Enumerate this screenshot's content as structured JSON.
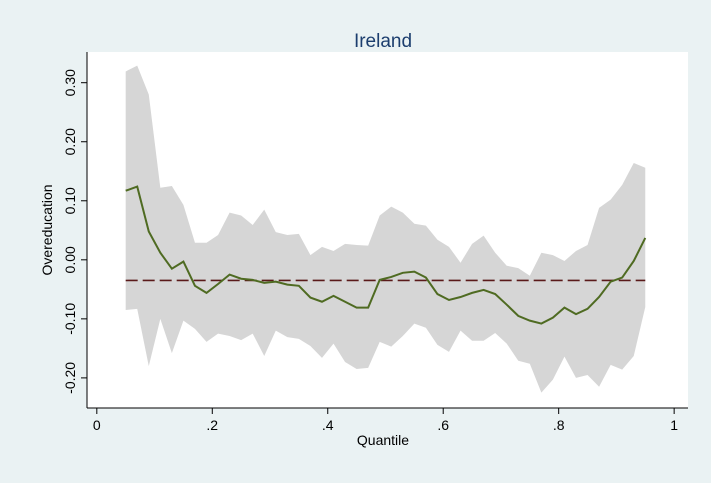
{
  "chart_data": {
    "type": "line",
    "title": "Ireland",
    "x_label": "Quantile",
    "y_label": "Overeducation",
    "x": [
      0.05,
      0.07,
      0.09,
      0.11,
      0.13,
      0.15,
      0.17,
      0.19,
      0.21,
      0.23,
      0.25,
      0.27,
      0.29,
      0.31,
      0.33,
      0.35,
      0.37,
      0.39,
      0.41,
      0.43,
      0.45,
      0.47,
      0.49,
      0.51,
      0.53,
      0.55,
      0.57,
      0.59,
      0.61,
      0.63,
      0.65,
      0.67,
      0.69,
      0.71,
      0.73,
      0.75,
      0.77,
      0.79,
      0.81,
      0.83,
      0.85,
      0.87,
      0.89,
      0.91,
      0.93,
      0.95
    ],
    "values": [
      0.117,
      0.124,
      0.048,
      0.012,
      -0.015,
      -0.003,
      -0.044,
      -0.056,
      -0.041,
      -0.025,
      -0.032,
      -0.034,
      -0.039,
      -0.037,
      -0.042,
      -0.044,
      -0.064,
      -0.071,
      -0.061,
      -0.071,
      -0.081,
      -0.081,
      -0.034,
      -0.029,
      -0.022,
      -0.02,
      -0.03,
      -0.058,
      -0.068,
      -0.063,
      -0.056,
      -0.051,
      -0.058,
      -0.076,
      -0.095,
      -0.103,
      -0.108,
      -0.098,
      -0.081,
      -0.092,
      -0.083,
      -0.063,
      -0.037,
      -0.03,
      -0.002,
      0.037
    ],
    "ci_upper": [
      0.319,
      0.329,
      0.28,
      0.122,
      0.125,
      0.093,
      0.029,
      0.029,
      0.042,
      0.08,
      0.075,
      0.059,
      0.085,
      0.047,
      0.042,
      0.044,
      0.008,
      0.022,
      0.015,
      0.027,
      0.025,
      0.024,
      0.075,
      0.09,
      0.08,
      0.061,
      0.058,
      0.034,
      0.022,
      -0.005,
      0.027,
      0.041,
      0.012,
      -0.01,
      -0.014,
      -0.027,
      0.012,
      0.008,
      -0.002,
      0.015,
      0.025,
      0.088,
      0.102,
      0.127,
      0.164,
      0.156
    ],
    "ci_lower": [
      -0.085,
      -0.083,
      -0.18,
      -0.1,
      -0.158,
      -0.103,
      -0.117,
      -0.139,
      -0.125,
      -0.129,
      -0.136,
      -0.125,
      -0.163,
      -0.12,
      -0.131,
      -0.134,
      -0.146,
      -0.166,
      -0.142,
      -0.173,
      -0.185,
      -0.183,
      -0.139,
      -0.147,
      -0.129,
      -0.108,
      -0.115,
      -0.144,
      -0.156,
      -0.12,
      -0.137,
      -0.137,
      -0.124,
      -0.142,
      -0.171,
      -0.176,
      -0.225,
      -0.203,
      -0.164,
      -0.2,
      -0.195,
      -0.215,
      -0.178,
      -0.186,
      -0.163,
      -0.08
    ],
    "reference_line": -0.035,
    "color": "#4f6b22",
    "band_color": "#d6d6d6",
    "reference_color": "#5a1a1a",
    "xlim": [
      -0.017,
      1.024
    ],
    "ylim": [
      -0.251,
      0.352
    ],
    "xticks": [
      0,
      {
        "value": 0.2,
        "label": ".2"
      },
      {
        "value": 0.4,
        "label": ".4"
      },
      {
        "value": 0.6,
        "label": ".6"
      },
      {
        "value": 0.8,
        "label": ".8"
      },
      1
    ],
    "yticks": [
      {
        "value": -0.2,
        "label": "-0.20"
      },
      {
        "value": -0.1,
        "label": "-0.10"
      },
      {
        "value": 0,
        "label": "0.00"
      },
      {
        "value": 0.1,
        "label": "0.10"
      },
      {
        "value": 0.2,
        "label": "0.20"
      },
      {
        "value": 0.3,
        "label": "0.30"
      }
    ]
  }
}
